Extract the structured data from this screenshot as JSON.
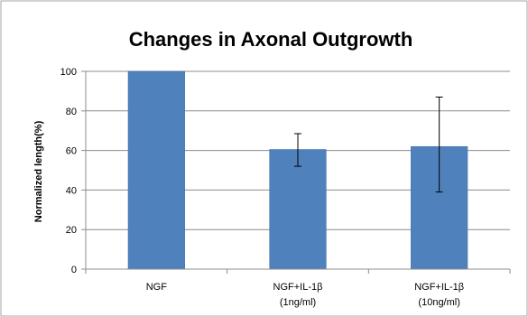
{
  "chart_data": {
    "type": "bar",
    "title": "Changes in Axonal Outgrowth",
    "ylabel": "Normalized length(%)",
    "xlabel": "",
    "categories": [
      [
        "NGF"
      ],
      [
        "NGF+IL-1β",
        "(1ng/ml)"
      ],
      [
        "NGF+IL-1β",
        "(10ng/ml)"
      ]
    ],
    "values": [
      100,
      60.5,
      62
    ],
    "error_bars": [
      {
        "low": 100,
        "high": 100
      },
      {
        "low": 52,
        "high": 68.5
      },
      {
        "low": 39,
        "high": 87
      }
    ],
    "ylim": [
      0,
      100
    ],
    "yticks": [
      0,
      20,
      40,
      60,
      80,
      100
    ],
    "grid": true,
    "legend": "none",
    "colors": {
      "bar": "#4f81bd",
      "bar_edge": "#3d6aa3",
      "grid": "#8c8c8c",
      "axis": "#8c8c8c",
      "error": "#000000",
      "frame": "#a6a6a6"
    }
  }
}
